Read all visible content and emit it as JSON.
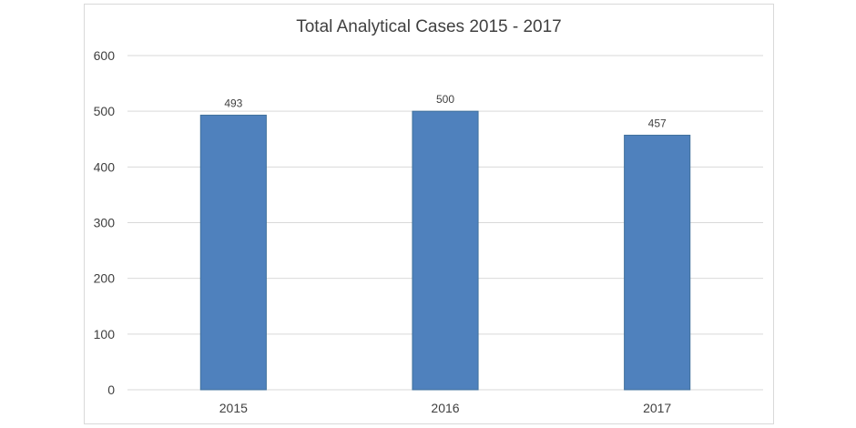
{
  "chart_data": {
    "type": "bar",
    "title": "Total Analytical Cases 2015 - 2017",
    "categories": [
      "2015",
      "2016",
      "2017"
    ],
    "values": [
      493,
      500,
      457
    ],
    "data_labels": [
      "493",
      "500",
      "457"
    ],
    "xlabel": "",
    "ylabel": "",
    "ylim": [
      0,
      600
    ],
    "yticks": [
      0,
      100,
      200,
      300,
      400,
      500,
      600
    ],
    "ytick_labels": [
      "0",
      "100",
      "200",
      "300",
      "400",
      "500",
      "600"
    ],
    "grid": true,
    "legend": "none",
    "colors": {
      "bar": "#4f81bd",
      "grid": "#d9d9d9",
      "text": "#404040"
    }
  }
}
